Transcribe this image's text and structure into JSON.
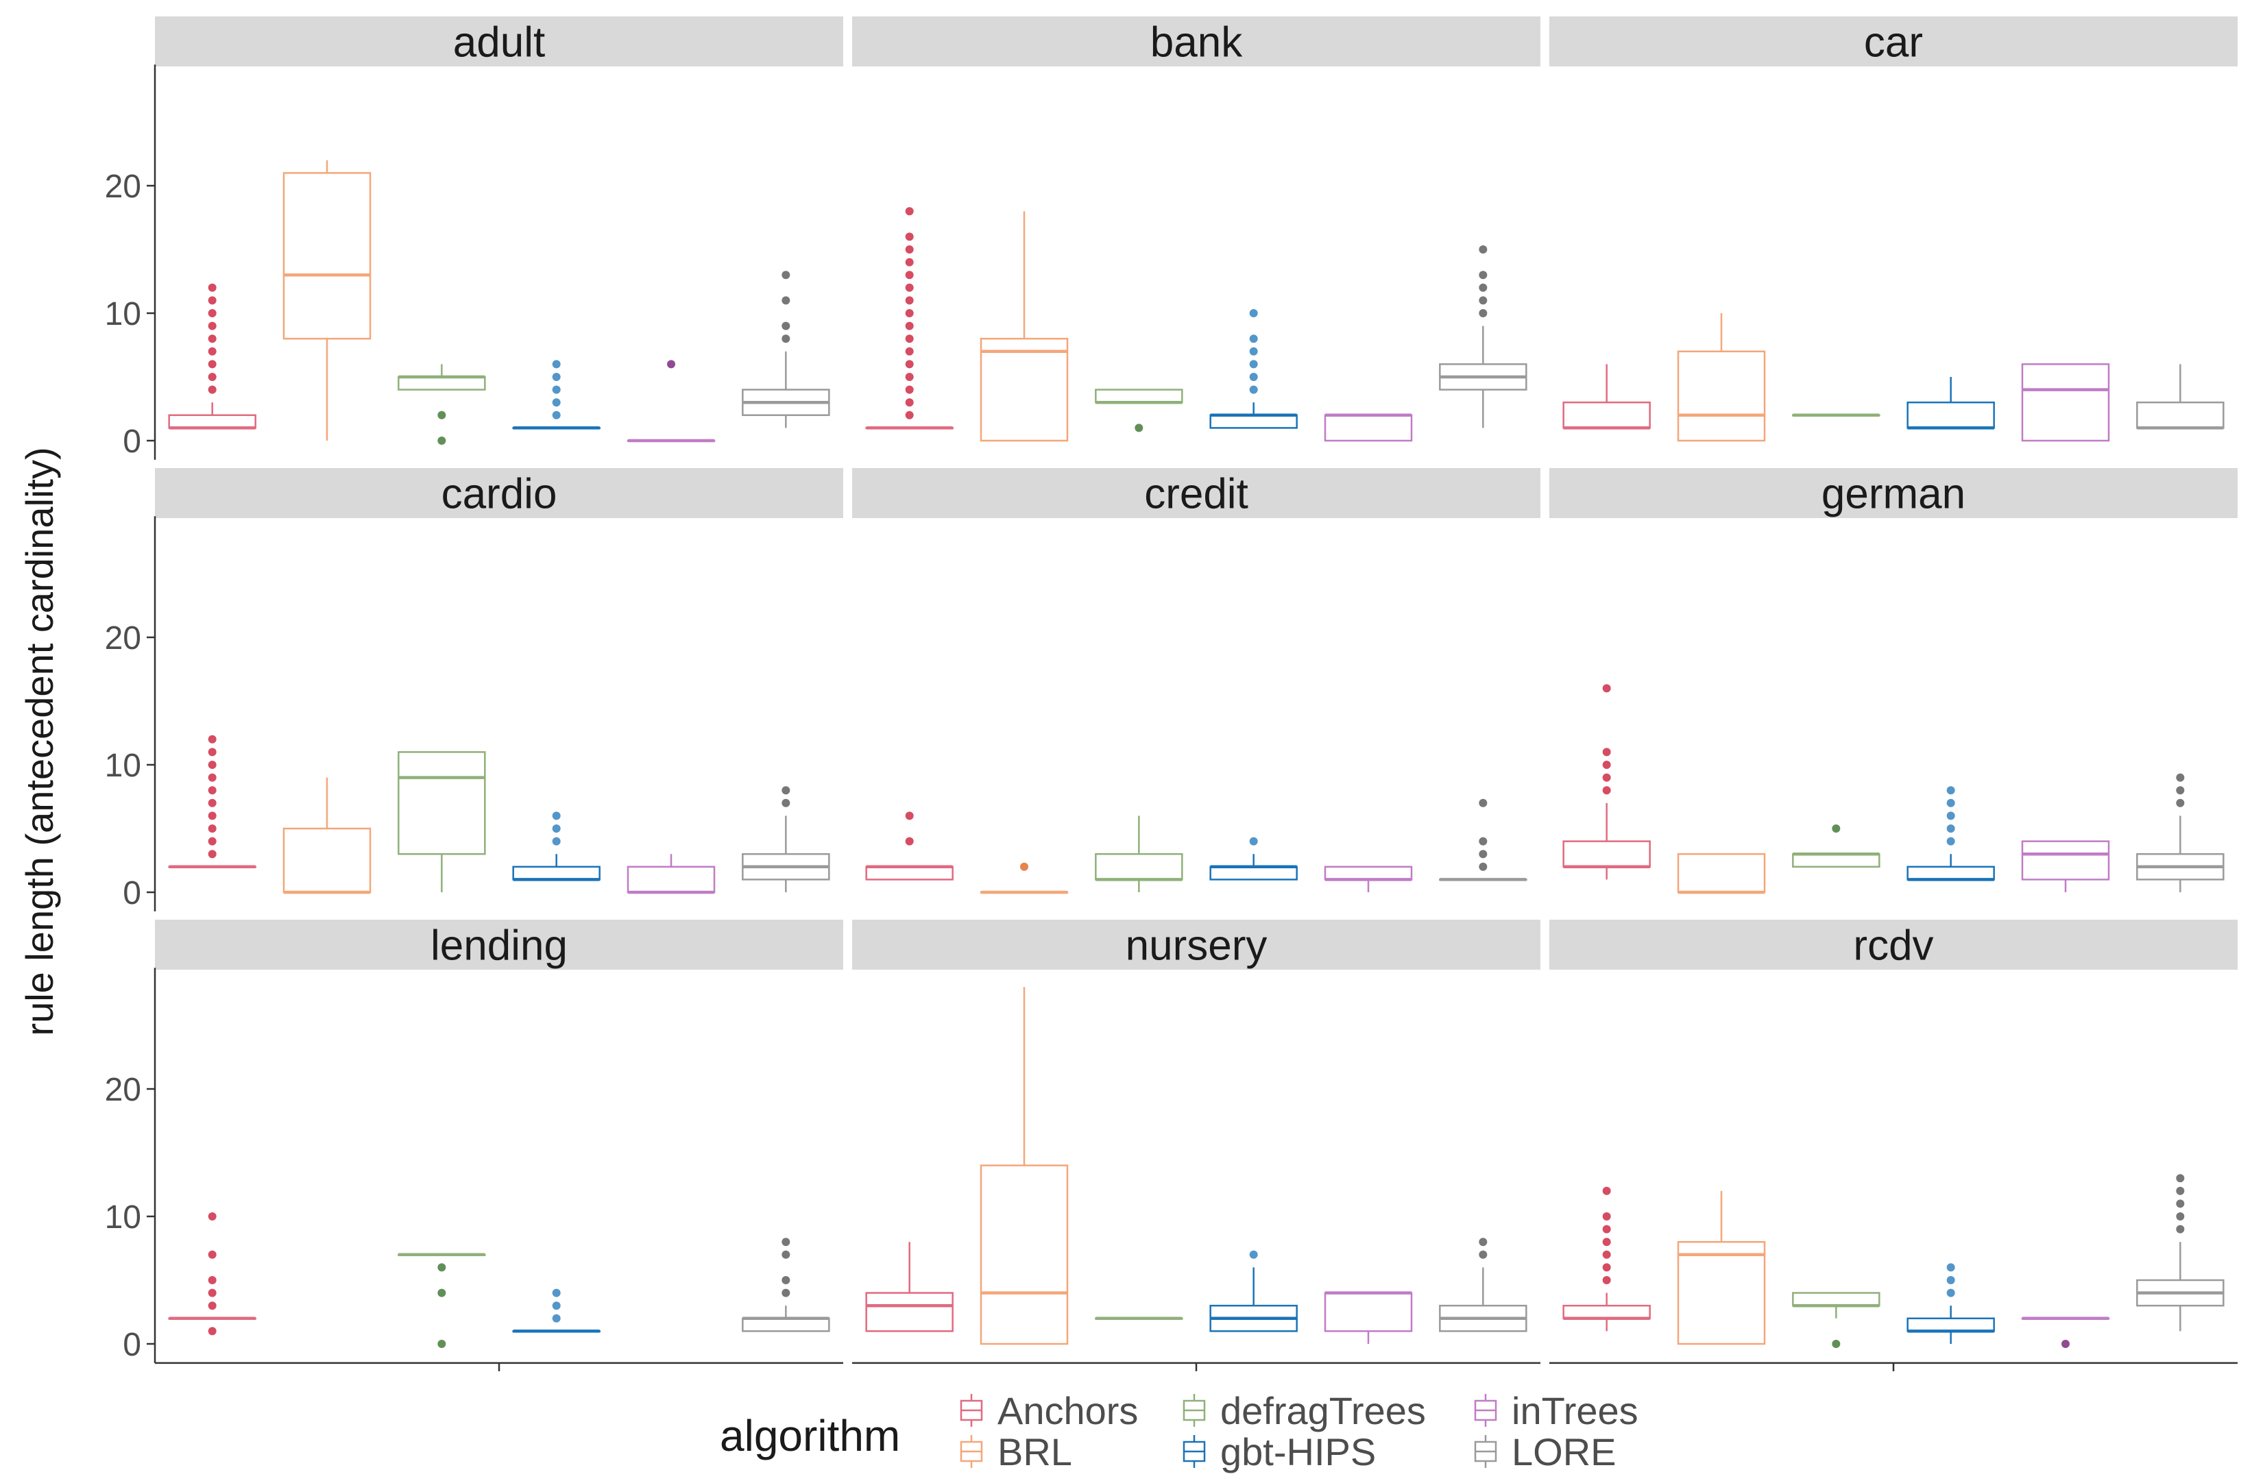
{
  "chart_data": {
    "type": "boxplot",
    "facet_wrap": "dataset",
    "ylabel": "rule length (antecedent cardinality)",
    "xlabel": "",
    "ylim": [
      -1.5,
      29.5
    ],
    "y_ticks": [
      0,
      10,
      20
    ],
    "grid": false,
    "legend": {
      "title": "algorithm",
      "placement": "bottom",
      "entries": [
        "Anchors",
        "BRL",
        "defragTrees",
        "gbt-HIPS",
        "inTrees",
        "LORE"
      ]
    },
    "algorithms": [
      {
        "name": "Anchors",
        "color": "#e06a80",
        "outlier_color": "#c8102e"
      },
      {
        "name": "BRL",
        "color": "#f5a679",
        "outlier_color": "#e05a10"
      },
      {
        "name": "defragTrees",
        "color": "#8fb07a",
        "outlier_color": "#2d6a1f"
      },
      {
        "name": "gbt-HIPS",
        "color": "#1a73b8",
        "outlier_color": "#1a73b8"
      },
      {
        "name": "inTrees",
        "color": "#c07cc6",
        "outlier_color": "#6a0f70"
      },
      {
        "name": "LORE",
        "color": "#9a9a9a",
        "outlier_color": "#4a4a4a"
      }
    ],
    "facets": [
      {
        "dataset": "adult",
        "boxes": [
          {
            "algorithm": "Anchors",
            "q1": 1,
            "median": 1,
            "q3": 2,
            "lower": 1,
            "upper": 3,
            "outliers": [
              4,
              5,
              6,
              7,
              8,
              9,
              10,
              11,
              12
            ]
          },
          {
            "algorithm": "BRL",
            "q1": 8,
            "median": 13,
            "q3": 21,
            "lower": 0,
            "upper": 22,
            "outliers": []
          },
          {
            "algorithm": "defragTrees",
            "q1": 4,
            "median": 5,
            "q3": 5,
            "lower": 4,
            "upper": 6,
            "outliers": [
              0,
              2
            ]
          },
          {
            "algorithm": "gbt-HIPS",
            "q1": 1,
            "median": 1,
            "q3": 1,
            "lower": 1,
            "upper": 1,
            "outliers": [
              2,
              3,
              4,
              5,
              6
            ]
          },
          {
            "algorithm": "inTrees",
            "q1": 0,
            "median": 0,
            "q3": 0,
            "lower": 0,
            "upper": 0,
            "outliers": [
              6
            ]
          },
          {
            "algorithm": "LORE",
            "q1": 2,
            "median": 3,
            "q3": 4,
            "lower": 1,
            "upper": 7,
            "outliers": [
              8,
              9,
              11,
              13
            ]
          }
        ]
      },
      {
        "dataset": "bank",
        "boxes": [
          {
            "algorithm": "Anchors",
            "q1": 1,
            "median": 1,
            "q3": 1,
            "lower": 1,
            "upper": 1,
            "outliers": [
              2,
              3,
              4,
              5,
              6,
              7,
              8,
              9,
              10,
              11,
              12,
              13,
              14,
              15,
              16,
              18
            ]
          },
          {
            "algorithm": "BRL",
            "q1": 0,
            "median": 7,
            "q3": 8,
            "lower": 0,
            "upper": 18,
            "outliers": []
          },
          {
            "algorithm": "defragTrees",
            "q1": 3,
            "median": 3,
            "q3": 4,
            "lower": 3,
            "upper": 4,
            "outliers": [
              1
            ]
          },
          {
            "algorithm": "gbt-HIPS",
            "q1": 1,
            "median": 2,
            "q3": 2,
            "lower": 1,
            "upper": 3,
            "outliers": [
              4,
              5,
              6,
              7,
              8,
              10
            ]
          },
          {
            "algorithm": "inTrees",
            "q1": 0,
            "median": 2,
            "q3": 2,
            "lower": 0,
            "upper": 2,
            "outliers": []
          },
          {
            "algorithm": "LORE",
            "q1": 4,
            "median": 5,
            "q3": 6,
            "lower": 1,
            "upper": 9,
            "outliers": [
              10,
              11,
              12,
              13,
              15
            ]
          }
        ]
      },
      {
        "dataset": "car",
        "boxes": [
          {
            "algorithm": "Anchors",
            "q1": 1,
            "median": 1,
            "q3": 3,
            "lower": 1,
            "upper": 6,
            "outliers": []
          },
          {
            "algorithm": "BRL",
            "q1": 0,
            "median": 2,
            "q3": 7,
            "lower": 0,
            "upper": 10,
            "outliers": []
          },
          {
            "algorithm": "defragTrees",
            "q1": 2,
            "median": 2,
            "q3": 2,
            "lower": 2,
            "upper": 2,
            "outliers": []
          },
          {
            "algorithm": "gbt-HIPS",
            "q1": 1,
            "median": 1,
            "q3": 3,
            "lower": 1,
            "upper": 5,
            "outliers": []
          },
          {
            "algorithm": "inTrees",
            "q1": 0,
            "median": 4,
            "q3": 6,
            "lower": 0,
            "upper": 6,
            "outliers": []
          },
          {
            "algorithm": "LORE",
            "q1": 1,
            "median": 1,
            "q3": 3,
            "lower": 1,
            "upper": 6,
            "outliers": []
          }
        ]
      },
      {
        "dataset": "cardio",
        "boxes": [
          {
            "algorithm": "Anchors",
            "q1": 2,
            "median": 2,
            "q3": 2,
            "lower": 2,
            "upper": 2,
            "outliers": [
              3,
              4,
              5,
              6,
              7,
              8,
              9,
              10,
              11,
              12
            ]
          },
          {
            "algorithm": "BRL",
            "q1": 0,
            "median": 0,
            "q3": 5,
            "lower": 0,
            "upper": 9,
            "outliers": []
          },
          {
            "algorithm": "defragTrees",
            "q1": 3,
            "median": 9,
            "q3": 11,
            "lower": 0,
            "upper": 11,
            "outliers": []
          },
          {
            "algorithm": "gbt-HIPS",
            "q1": 1,
            "median": 1,
            "q3": 2,
            "lower": 1,
            "upper": 3,
            "outliers": [
              4,
              5,
              6
            ]
          },
          {
            "algorithm": "inTrees",
            "q1": 0,
            "median": 0,
            "q3": 2,
            "lower": 0,
            "upper": 3,
            "outliers": []
          },
          {
            "algorithm": "LORE",
            "q1": 1,
            "median": 2,
            "q3": 3,
            "lower": 0,
            "upper": 6,
            "outliers": [
              7,
              8
            ]
          }
        ]
      },
      {
        "dataset": "credit",
        "boxes": [
          {
            "algorithm": "Anchors",
            "q1": 1,
            "median": 2,
            "q3": 2,
            "lower": 1,
            "upper": 2,
            "outliers": [
              4,
              6
            ]
          },
          {
            "algorithm": "BRL",
            "q1": 0,
            "median": 0,
            "q3": 0,
            "lower": 0,
            "upper": 0,
            "outliers": [
              2
            ]
          },
          {
            "algorithm": "defragTrees",
            "q1": 1,
            "median": 1,
            "q3": 3,
            "lower": 0,
            "upper": 6,
            "outliers": []
          },
          {
            "algorithm": "gbt-HIPS",
            "q1": 1,
            "median": 2,
            "q3": 2,
            "lower": 1,
            "upper": 3,
            "outliers": [
              4
            ]
          },
          {
            "algorithm": "inTrees",
            "q1": 1,
            "median": 1,
            "q3": 2,
            "lower": 0,
            "upper": 2,
            "outliers": []
          },
          {
            "algorithm": "LORE",
            "q1": 1,
            "median": 1,
            "q3": 1,
            "lower": 1,
            "upper": 1,
            "outliers": [
              2,
              3,
              4,
              7
            ]
          }
        ]
      },
      {
        "dataset": "german",
        "boxes": [
          {
            "algorithm": "Anchors",
            "q1": 2,
            "median": 2,
            "q3": 4,
            "lower": 1,
            "upper": 7,
            "outliers": [
              8,
              9,
              10,
              11,
              16
            ]
          },
          {
            "algorithm": "BRL",
            "q1": 0,
            "median": 0,
            "q3": 3,
            "lower": 0,
            "upper": 3,
            "outliers": []
          },
          {
            "algorithm": "defragTrees",
            "q1": 2,
            "median": 3,
            "q3": 3,
            "lower": 2,
            "upper": 3,
            "outliers": [
              5
            ]
          },
          {
            "algorithm": "gbt-HIPS",
            "q1": 1,
            "median": 1,
            "q3": 2,
            "lower": 1,
            "upper": 3,
            "outliers": [
              4,
              5,
              6,
              7,
              8
            ]
          },
          {
            "algorithm": "inTrees",
            "q1": 1,
            "median": 3,
            "q3": 4,
            "lower": 0,
            "upper": 4,
            "outliers": []
          },
          {
            "algorithm": "LORE",
            "q1": 1,
            "median": 2,
            "q3": 3,
            "lower": 0,
            "upper": 6,
            "outliers": [
              7,
              8,
              9
            ]
          }
        ]
      },
      {
        "dataset": "lending",
        "boxes": [
          {
            "algorithm": "Anchors",
            "q1": 2,
            "median": 2,
            "q3": 2,
            "lower": 2,
            "upper": 2,
            "outliers": [
              1,
              3,
              4,
              5,
              7,
              10
            ]
          },
          {
            "algorithm": "BRL",
            "q1": null,
            "median": null,
            "q3": null,
            "lower": null,
            "upper": null,
            "outliers": []
          },
          {
            "algorithm": "defragTrees",
            "q1": 7,
            "median": 7,
            "q3": 7,
            "lower": 7,
            "upper": 7,
            "outliers": [
              0,
              4,
              6
            ]
          },
          {
            "algorithm": "gbt-HIPS",
            "q1": 1,
            "median": 1,
            "q3": 1,
            "lower": 1,
            "upper": 1,
            "outliers": [
              2,
              3,
              4
            ]
          },
          {
            "algorithm": "inTrees",
            "q1": null,
            "median": null,
            "q3": null,
            "lower": null,
            "upper": null,
            "outliers": []
          },
          {
            "algorithm": "LORE",
            "q1": 1,
            "median": 2,
            "q3": 2,
            "lower": 1,
            "upper": 3,
            "outliers": [
              4,
              5,
              7,
              8
            ]
          }
        ]
      },
      {
        "dataset": "nursery",
        "boxes": [
          {
            "algorithm": "Anchors",
            "q1": 1,
            "median": 3,
            "q3": 4,
            "lower": 1,
            "upper": 8,
            "outliers": []
          },
          {
            "algorithm": "BRL",
            "q1": 0,
            "median": 4,
            "q3": 14,
            "lower": 0,
            "upper": 28,
            "outliers": []
          },
          {
            "algorithm": "defragTrees",
            "q1": 2,
            "median": 2,
            "q3": 2,
            "lower": 2,
            "upper": 2,
            "outliers": []
          },
          {
            "algorithm": "gbt-HIPS",
            "q1": 1,
            "median": 2,
            "q3": 3,
            "lower": 1,
            "upper": 6,
            "outliers": [
              7
            ]
          },
          {
            "algorithm": "inTrees",
            "q1": 1,
            "median": 4,
            "q3": 4,
            "lower": 0,
            "upper": 4,
            "outliers": []
          },
          {
            "algorithm": "LORE",
            "q1": 1,
            "median": 2,
            "q3": 3,
            "lower": 1,
            "upper": 6,
            "outliers": [
              7,
              8
            ]
          }
        ]
      },
      {
        "dataset": "rcdv",
        "boxes": [
          {
            "algorithm": "Anchors",
            "q1": 2,
            "median": 2,
            "q3": 3,
            "lower": 1,
            "upper": 4,
            "outliers": [
              5,
              6,
              7,
              8,
              9,
              10,
              12
            ]
          },
          {
            "algorithm": "BRL",
            "q1": 0,
            "median": 7,
            "q3": 8,
            "lower": 0,
            "upper": 12,
            "outliers": []
          },
          {
            "algorithm": "defragTrees",
            "q1": 3,
            "median": 3,
            "q3": 4,
            "lower": 2,
            "upper": 4,
            "outliers": [
              0
            ]
          },
          {
            "algorithm": "gbt-HIPS",
            "q1": 1,
            "median": 1,
            "q3": 2,
            "lower": 0,
            "upper": 3,
            "outliers": [
              4,
              5,
              6
            ]
          },
          {
            "algorithm": "inTrees",
            "q1": 2,
            "median": 2,
            "q3": 2,
            "lower": 2,
            "upper": 2,
            "outliers": [
              0
            ]
          },
          {
            "algorithm": "LORE",
            "q1": 3,
            "median": 4,
            "q3": 5,
            "lower": 1,
            "upper": 8,
            "outliers": [
              9,
              10,
              11,
              12,
              13
            ]
          }
        ]
      }
    ]
  }
}
